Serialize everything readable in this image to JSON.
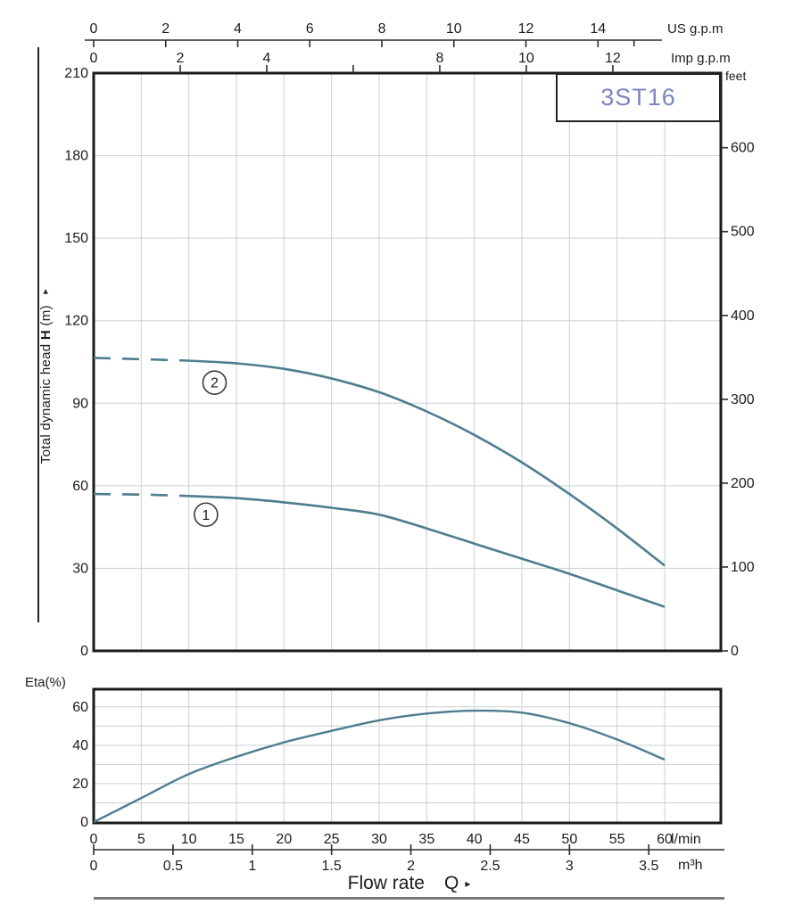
{
  "model": "3ST16",
  "labels": {
    "us_gpm": "US g.p.m",
    "imp_gpm": "Imp g.p.m",
    "feet": "feet",
    "lmin": "l/min",
    "m3h": "m³h",
    "eta": "Eta(%)",
    "head_title_pre": "Total dynamic head",
    "head_title_sym": "H",
    "head_title_post": "(m)",
    "flow_rate": "Flow rate",
    "flow_symbol": "Q"
  },
  "icons": {
    "up_arrow": "▸",
    "right_arrow": "▸"
  },
  "colors": {
    "curve": "#4e7d8e",
    "grid": "#cbd1d4",
    "border": "#1a1a1a",
    "axis": "#2b2b2b",
    "text": "#1c1c1c",
    "model_text": "#7c85bd",
    "rule": "#777777"
  },
  "chart_data": [
    {
      "id": "head_plot",
      "type": "line",
      "title": "3ST16",
      "xlabel": "Flow rate Q",
      "ylabel": "Total dynamic head H (m)",
      "x_unit": "l/min",
      "xlim_lmin": [
        0,
        66
      ],
      "ylim_m": [
        0,
        210
      ],
      "y_ticks_m": [
        0,
        30,
        60,
        90,
        120,
        150,
        180,
        210
      ],
      "y_ticks_feet": [
        0,
        100,
        200,
        300,
        400,
        500,
        600
      ],
      "grid_x_lmin": [
        5,
        10,
        15,
        20,
        25,
        30,
        35,
        40,
        45,
        50,
        55,
        60
      ],
      "grid_y_m": [
        30,
        60,
        90,
        120,
        150,
        180
      ],
      "us_gpm_ticks": [
        0,
        2,
        4,
        6,
        8,
        10,
        12,
        14
      ],
      "us_gpm_minor_tick": 15,
      "us_gpm_to_lmin": 3.7854,
      "imp_gpm_labeled_ticks": [
        0,
        2,
        4,
        8,
        10,
        12
      ],
      "imp_gpm_border_ticks": [
        2,
        4,
        6,
        8,
        10,
        12
      ],
      "imp_gpm_to_lmin": 4.5461,
      "feet_per_m": 3.2808,
      "series": [
        {
          "label": "2",
          "dash_until_lmin": 10,
          "badge_at": [
            12.7,
            97.5
          ],
          "points_lmin_m": [
            [
              0,
              106.5
            ],
            [
              5,
              106
            ],
            [
              10,
              105.5
            ],
            [
              15,
              104.5
            ],
            [
              20,
              102.5
            ],
            [
              25,
              99
            ],
            [
              30,
              94
            ],
            [
              35,
              87
            ],
            [
              40,
              78.5
            ],
            [
              45,
              68.5
            ],
            [
              50,
              57
            ],
            [
              55,
              44.5
            ],
            [
              60,
              31
            ]
          ]
        },
        {
          "label": "1",
          "dash_until_lmin": 10,
          "badge_at": [
            11.8,
            49.5
          ],
          "points_lmin_m": [
            [
              0,
              57
            ],
            [
              5,
              56.8
            ],
            [
              10,
              56.3
            ],
            [
              15,
              55.5
            ],
            [
              20,
              54
            ],
            [
              25,
              52
            ],
            [
              30,
              49.5
            ],
            [
              35,
              44.5
            ],
            [
              40,
              39
            ],
            [
              45,
              33.5
            ],
            [
              50,
              28
            ],
            [
              55,
              22
            ],
            [
              60,
              16
            ]
          ]
        }
      ]
    },
    {
      "id": "eta_plot",
      "type": "line",
      "ylabel": "Eta(%)",
      "x_unit": "l/min",
      "ylim_pct": [
        0,
        69
      ],
      "y_ticks_pct": [
        0,
        20,
        40,
        60
      ],
      "grid_y_pct": [
        10,
        20,
        30,
        40,
        50,
        60
      ],
      "grid_x_lmin": [
        5,
        10,
        15,
        20,
        25,
        30,
        35,
        40,
        45,
        50,
        55,
        60
      ],
      "series": [
        {
          "label": "Eta",
          "points_lmin_pct": [
            [
              0,
              0
            ],
            [
              5,
              12.5
            ],
            [
              10,
              25
            ],
            [
              15,
              34
            ],
            [
              20,
              41.5
            ],
            [
              25,
              47.5
            ],
            [
              30,
              53
            ],
            [
              35,
              56.5
            ],
            [
              40,
              58
            ],
            [
              45,
              57
            ],
            [
              50,
              51.5
            ],
            [
              55,
              43
            ],
            [
              60,
              32.5
            ]
          ]
        }
      ]
    },
    {
      "id": "bottom_axes",
      "type": "axis",
      "lmin_ticks": [
        0,
        5,
        10,
        15,
        20,
        25,
        30,
        35,
        40,
        45,
        50,
        55,
        60
      ],
      "m3h_ticks": [
        0,
        0.5,
        1,
        1.5,
        2,
        2.5,
        3,
        3.5
      ],
      "m3h_to_lmin": 16.6667
    }
  ]
}
